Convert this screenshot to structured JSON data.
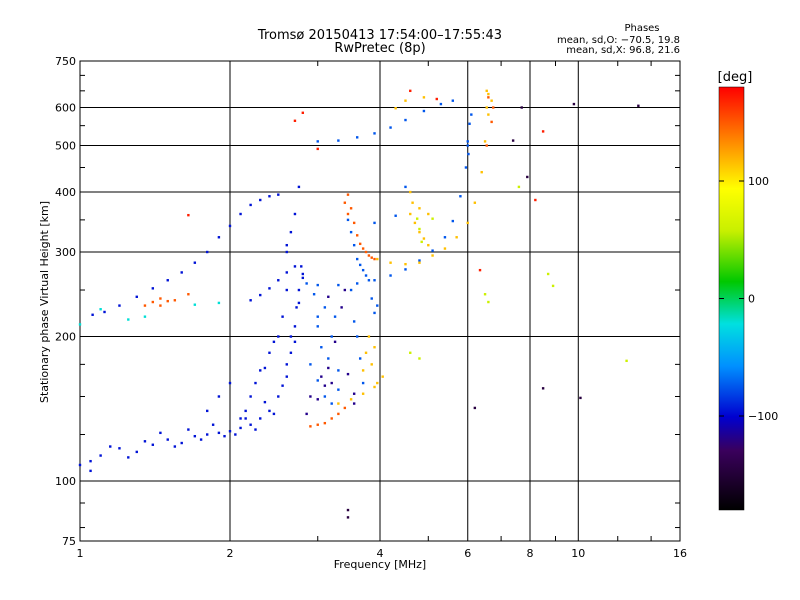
{
  "header": {
    "title_line1": "Tromsø 20150413 17:54:00–17:55:43",
    "title_line2": "RwPretec (8p)"
  },
  "phases": {
    "title": "Phases",
    "line1": "mean, sd,O: −70.5, 19.8",
    "line2": "mean, sd,X:  96.8, 21.6"
  },
  "chart_data": {
    "type": "scatter",
    "title": "Tromsø 20150413 17:54:00–17:55:43",
    "subtitle": "RwPretec (8p)",
    "xlabel": "Frequency [MHz]",
    "ylabel": "Stationary phase Virtual Height [km]",
    "x_scale": "log",
    "y_scale": "log",
    "xlim": [
      1,
      16
    ],
    "ylim": [
      75,
      750
    ],
    "x_ticks": [
      1,
      2,
      4,
      6,
      8,
      10,
      16
    ],
    "x_tick_labels": [
      "1",
      "2",
      "4",
      "6",
      "8",
      "10",
      "16"
    ],
    "y_ticks": [
      75,
      100,
      200,
      300,
      400,
      500,
      600,
      750
    ],
    "y_tick_labels": [
      "75",
      "100",
      "200",
      "300",
      "400",
      "500",
      "600",
      "750"
    ],
    "grid": true,
    "colorbar": {
      "label": "[deg]",
      "range": [
        -180,
        180
      ],
      "ticks": [
        100,
        0,
        -100
      ],
      "tick_labels": [
        "100",
        "0",
        "−100"
      ]
    },
    "series": [
      {
        "color_phase": -75,
        "points": [
          [
            2.85,
            258
          ],
          [
            3,
            256
          ],
          [
            3.3,
            256
          ],
          [
            3.6,
            258
          ],
          [
            3.9,
            262
          ],
          [
            4.2,
            268
          ],
          [
            4.5,
            276
          ],
          [
            4.8,
            288
          ],
          [
            5.1,
            302
          ],
          [
            5.4,
            322
          ],
          [
            5.6,
            348
          ],
          [
            5.8,
            392
          ],
          [
            5.95,
            450
          ],
          [
            6.0,
            500
          ],
          [
            6.05,
            555
          ],
          [
            3.0,
            510
          ],
          [
            3.3,
            512
          ],
          [
            3.6,
            520
          ],
          [
            3.9,
            530
          ],
          [
            4.2,
            545
          ],
          [
            4.5,
            565
          ],
          [
            4.9,
            590
          ],
          [
            5.3,
            610
          ],
          [
            5.6,
            620
          ],
          [
            6.0,
            510
          ],
          [
            6.02,
            480
          ],
          [
            6.1,
            580
          ],
          [
            2.9,
            175
          ],
          [
            3.0,
            162
          ],
          [
            3.0,
            210
          ],
          [
            3.05,
            190
          ],
          [
            3.1,
            150
          ],
          [
            3.1,
            230
          ],
          [
            3.15,
            180
          ],
          [
            3.2,
            200
          ],
          [
            3.2,
            145
          ],
          [
            3.25,
            220
          ],
          [
            3.3,
            170
          ],
          [
            3.3,
            155
          ],
          [
            2.95,
            245
          ],
          [
            3.0,
            220
          ],
          [
            3.45,
            350
          ],
          [
            3.5,
            330
          ],
          [
            3.55,
            310
          ],
          [
            3.6,
            290
          ],
          [
            3.65,
            282
          ],
          [
            3.7,
            275
          ],
          [
            3.75,
            268
          ],
          [
            3.8,
            262
          ],
          [
            3.85,
            240
          ],
          [
            3.9,
            224
          ],
          [
            3.95,
            232
          ],
          [
            3.9,
            345
          ],
          [
            4.3,
            357
          ],
          [
            4.5,
            410
          ],
          [
            3.5,
            250
          ],
          [
            3.55,
            215
          ],
          [
            3.6,
            200
          ],
          [
            3.65,
            180
          ],
          [
            3.7,
            160
          ]
        ]
      },
      {
        "color_phase": -118,
        "points": [
          [
            2.9,
            150
          ],
          [
            3.0,
            148
          ],
          [
            3.05,
            165
          ],
          [
            3.1,
            158
          ],
          [
            3.15,
            172
          ],
          [
            3.2,
            160
          ],
          [
            3.25,
            195
          ],
          [
            3.35,
            230
          ],
          [
            3.4,
            250
          ],
          [
            2.85,
            138
          ],
          [
            3.15,
            242
          ],
          [
            3.55,
            145
          ],
          [
            3.45,
            167
          ],
          [
            3.55,
            152
          ]
        ]
      },
      {
        "color_phase": -95,
        "points": [
          [
            1,
            108
          ],
          [
            1.05,
            110
          ],
          [
            1.1,
            113
          ],
          [
            1.2,
            117
          ],
          [
            1.3,
            115
          ],
          [
            1.4,
            119
          ],
          [
            1.5,
            122
          ],
          [
            1.6,
            120
          ],
          [
            1.7,
            124
          ],
          [
            1.8,
            125
          ],
          [
            1.9,
            126
          ],
          [
            2.0,
            127
          ],
          [
            2.1,
            129
          ],
          [
            2.2,
            131
          ],
          [
            2.3,
            135
          ],
          [
            2.4,
            140
          ],
          [
            2.5,
            150
          ],
          [
            2.6,
            165
          ],
          [
            2.65,
            185
          ],
          [
            2.7,
            210
          ],
          [
            2.75,
            235
          ],
          [
            2.8,
            265
          ],
          [
            1.05,
            105
          ],
          [
            1.15,
            118
          ],
          [
            1.25,
            112
          ],
          [
            1.35,
            121
          ],
          [
            1.45,
            126
          ],
          [
            1.55,
            118
          ],
          [
            1.65,
            128
          ],
          [
            1.75,
            122
          ],
          [
            1.85,
            131
          ],
          [
            1.95,
            124
          ],
          [
            2.05,
            125
          ],
          [
            2.15,
            135
          ],
          [
            2.25,
            128
          ],
          [
            2.35,
            146
          ],
          [
            2.45,
            138
          ],
          [
            2.55,
            158
          ],
          [
            2.6,
            175
          ],
          [
            2.65,
            200
          ],
          [
            2.7,
            195
          ],
          [
            2.72,
            230
          ],
          [
            2.75,
            250
          ],
          [
            2.78,
            280
          ],
          [
            2.6,
            300
          ],
          [
            2.65,
            330
          ],
          [
            2.7,
            360
          ],
          [
            2.75,
            410
          ],
          [
            2.5,
            395
          ],
          [
            2.4,
            392
          ],
          [
            2.3,
            385
          ],
          [
            2.2,
            376
          ],
          [
            2.1,
            360
          ],
          [
            2.0,
            340
          ],
          [
            1.9,
            322
          ],
          [
            1.8,
            300
          ],
          [
            1.7,
            285
          ],
          [
            1.6,
            272
          ],
          [
            1.5,
            262
          ],
          [
            1.4,
            252
          ],
          [
            1.3,
            242
          ],
          [
            1.2,
            232
          ],
          [
            1.12,
            225
          ],
          [
            1.06,
            222
          ],
          [
            2.2,
            238
          ],
          [
            2.3,
            244
          ],
          [
            2.4,
            252
          ],
          [
            2.5,
            262
          ],
          [
            2.6,
            272
          ],
          [
            2.7,
            280
          ],
          [
            2.8,
            270
          ],
          [
            2.6,
            310
          ],
          [
            2.6,
            250
          ],
          [
            2.55,
            220
          ],
          [
            2.5,
            200
          ],
          [
            2.45,
            195
          ],
          [
            2.4,
            185
          ],
          [
            2.35,
            172
          ],
          [
            2.3,
            170
          ],
          [
            2.25,
            160
          ],
          [
            2.2,
            150
          ],
          [
            2.15,
            140
          ],
          [
            2.1,
            135
          ],
          [
            1.9,
            150
          ],
          [
            1.8,
            140
          ],
          [
            2.0,
            160
          ]
        ]
      },
      {
        "color_phase": 115,
        "points": [
          [
            3.95,
            290
          ],
          [
            4.2,
            285
          ],
          [
            4.5,
            283
          ],
          [
            4.8,
            285
          ],
          [
            5.1,
            295
          ],
          [
            5.4,
            305
          ],
          [
            5.7,
            322
          ],
          [
            6.0,
            345
          ],
          [
            6.2,
            380
          ],
          [
            6.4,
            440
          ],
          [
            6.5,
            510
          ],
          [
            6.6,
            580
          ],
          [
            6.6,
            640
          ],
          [
            6.7,
            620
          ],
          [
            6.55,
            600
          ],
          [
            4.6,
            360
          ],
          [
            4.7,
            345
          ],
          [
            4.8,
            330
          ],
          [
            4.9,
            320
          ],
          [
            5.0,
            310
          ],
          [
            4.6,
            400
          ],
          [
            4.65,
            380
          ],
          [
            4.8,
            370
          ],
          [
            5.0,
            360
          ],
          [
            3.3,
            145
          ],
          [
            3.5,
            148
          ],
          [
            3.7,
            152
          ],
          [
            3.9,
            157
          ],
          [
            4.05,
            165
          ],
          [
            3.7,
            170
          ],
          [
            3.75,
            185
          ],
          [
            3.8,
            200
          ],
          [
            3.85,
            175
          ],
          [
            3.95,
            160
          ],
          [
            3.9,
            190
          ],
          [
            4.3,
            598
          ],
          [
            4.5,
            620
          ],
          [
            4.9,
            630
          ],
          [
            6.55,
            650
          ]
        ]
      },
      {
        "color_phase": 150,
        "points": [
          [
            3.5,
            370
          ],
          [
            3.55,
            345
          ],
          [
            3.6,
            325
          ],
          [
            3.65,
            312
          ],
          [
            3.7,
            305
          ],
          [
            3.75,
            300
          ],
          [
            3.8,
            295
          ],
          [
            3.85,
            292
          ],
          [
            3.9,
            290
          ],
          [
            3.4,
            380
          ],
          [
            3.45,
            395
          ],
          [
            3.45,
            360
          ],
          [
            2.9,
            130
          ],
          [
            3.0,
            131
          ],
          [
            3.1,
            132
          ],
          [
            3.2,
            135
          ],
          [
            3.3,
            138
          ],
          [
            3.4,
            142
          ],
          [
            1.35,
            232
          ],
          [
            1.4,
            236
          ],
          [
            1.45,
            240
          ],
          [
            1.5,
            237
          ],
          [
            1.55,
            238
          ],
          [
            1.65,
            245
          ],
          [
            1.45,
            232
          ],
          [
            6.6,
            630
          ],
          [
            6.75,
            600
          ],
          [
            6.7,
            560
          ],
          [
            6.55,
            500
          ]
        ]
      },
      {
        "color_phase": 60,
        "points": [
          [
            4.8,
            335
          ],
          [
            4.85,
            315
          ],
          [
            4.75,
            352
          ],
          [
            5.1,
            352
          ],
          [
            6.5,
            245
          ],
          [
            6.6,
            236
          ],
          [
            8.7,
            270
          ],
          [
            8.9,
            255
          ],
          [
            7.6,
            410
          ],
          [
            4.6,
            185
          ],
          [
            4.8,
            180
          ],
          [
            12.5,
            178
          ]
        ]
      },
      {
        "color_phase": 170,
        "points": [
          [
            2.7,
            563
          ],
          [
            2.8,
            585
          ],
          [
            3.0,
            492
          ],
          [
            4.6,
            650
          ],
          [
            5.2,
            625
          ],
          [
            6.35,
            275
          ],
          [
            8.2,
            385
          ],
          [
            8.5,
            535
          ],
          [
            1.65,
            358
          ]
        ]
      },
      {
        "color_phase": -20,
        "points": [
          [
            1.35,
            220
          ],
          [
            1.25,
            217
          ],
          [
            1.1,
            228
          ],
          [
            1.0,
            212
          ],
          [
            1.7,
            233
          ],
          [
            1.9,
            235
          ]
        ]
      },
      {
        "color_phase": -145,
        "points": [
          [
            3.45,
            87
          ],
          [
            3.45,
            84
          ],
          [
            8.5,
            156
          ],
          [
            10.1,
            149
          ],
          [
            9.8,
            610
          ],
          [
            13.2,
            605
          ],
          [
            6.2,
            142
          ],
          [
            7.4,
            512
          ],
          [
            7.7,
            600
          ],
          [
            7.9,
            430
          ]
        ]
      }
    ]
  }
}
